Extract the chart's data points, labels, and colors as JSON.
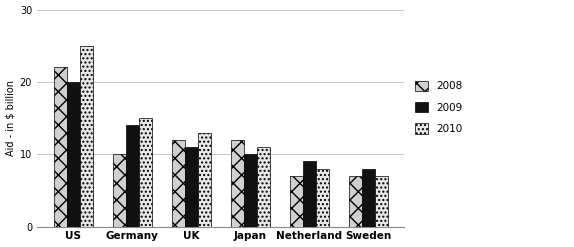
{
  "categories": [
    "US",
    "Germany",
    "UK",
    "Japan",
    "Netherland",
    "Sweden"
  ],
  "series": {
    "2008": [
      22,
      10,
      12,
      12,
      7,
      7
    ],
    "2009": [
      20,
      14,
      11,
      10,
      9,
      8
    ],
    "2010": [
      25,
      15,
      13,
      11,
      8,
      7
    ]
  },
  "ylabel": "Aid - in $ billion",
  "ylim": [
    0,
    30
  ],
  "yticks": [
    0,
    10,
    20,
    30
  ],
  "legend_labels": [
    "2008",
    "2009",
    "2010"
  ],
  "bar_width": 0.22,
  "background_color": "#ffffff",
  "grid_color": "#bbbbbb",
  "hatch_2008": "xx",
  "hatch_2009": "",
  "hatch_2010": "....",
  "color_2008": "#d0d0d0",
  "color_2009": "#111111",
  "color_2010": "#e8e8e8"
}
